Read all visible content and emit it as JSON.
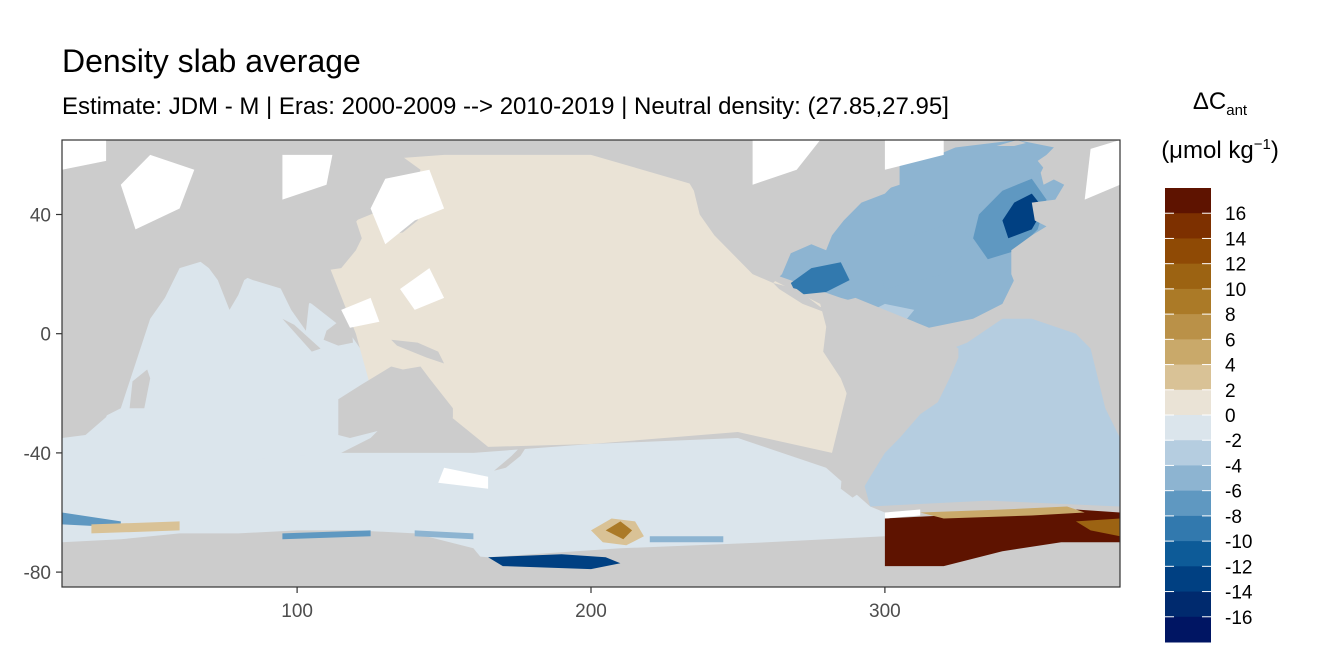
{
  "chart_data": {
    "type": "heatmap",
    "title": "Density slab average",
    "subtitle": "Estimate: JDM - M | Eras: 2000-2009 --> 2010-2019 | Neutral density: (27.85,27.95]",
    "xlabel": "",
    "ylabel": "",
    "xlim": [
      20,
      380
    ],
    "ylim": [
      -85,
      65
    ],
    "x_ticks": [
      100,
      200,
      300
    ],
    "y_ticks": [
      40,
      0,
      -40,
      -80
    ],
    "grid": false,
    "land_color": "#cccccc",
    "missing_color": "#ffffff",
    "legend": {
      "placement": "right",
      "title_main": "ΔC",
      "title_sub": "ant",
      "unit_prefix": "(μmol kg",
      "unit_sup": "−1",
      "unit_suffix": ")",
      "labels": [
        "16",
        "14",
        "12",
        "10",
        "8",
        "6",
        "4",
        "2",
        "0",
        "-2",
        "-4",
        "-6",
        "-8",
        "-10",
        "-12",
        "-14",
        "-16"
      ],
      "colors": [
        "#5e1300",
        "#7d3000",
        "#8f4a05",
        "#9c6312",
        "#ab7a27",
        "#ba9148",
        "#c9a96a",
        "#d9c296",
        "#eae3d6",
        "#dbe5ec",
        "#b5cde0",
        "#8db4d1",
        "#5f98c1",
        "#3279ae",
        "#0d5b98",
        "#004082",
        "#002a6e",
        "#001563"
      ]
    },
    "regions": [
      {
        "name": "North Pacific",
        "value": 0.5,
        "lon": [
          120,
          290
        ],
        "lat": [
          -30,
          60
        ]
      },
      {
        "name": "Indian Ocean",
        "value": -0.8,
        "lon": [
          20,
          120
        ],
        "lat": [
          -60,
          25
        ]
      },
      {
        "name": "Southern Ocean (Pacific sector)",
        "value": -1.2,
        "lon": [
          120,
          300
        ],
        "lat": [
          -70,
          -30
        ]
      },
      {
        "name": "South Atlantic",
        "value": -3,
        "lon": [
          295,
          380
        ],
        "lat": [
          -55,
          5
        ]
      },
      {
        "name": "North Atlantic",
        "value": -6,
        "lon": [
          260,
          380
        ],
        "lat": [
          5,
          60
        ]
      },
      {
        "name": "Labrador / Irminger Sea",
        "value": -14,
        "lon": [
          340,
          360
        ],
        "lat": [
          30,
          45
        ]
      },
      {
        "name": "Gulf of Mexico / Caribbean",
        "value": -10,
        "lon": [
          265,
          290
        ],
        "lat": [
          10,
          25
        ]
      },
      {
        "name": "Weddell Sea",
        "value": 17,
        "lon": [
          300,
          380
        ],
        "lat": [
          -78,
          -60
        ]
      },
      {
        "name": "Ross Sea",
        "value": 8,
        "lon": [
          200,
          220
        ],
        "lat": [
          -70,
          -62
        ]
      },
      {
        "name": "Antarctic margin (Pacific)",
        "value": -13,
        "lon": [
          165,
          210
        ],
        "lat": [
          -77,
          -72
        ]
      }
    ]
  }
}
